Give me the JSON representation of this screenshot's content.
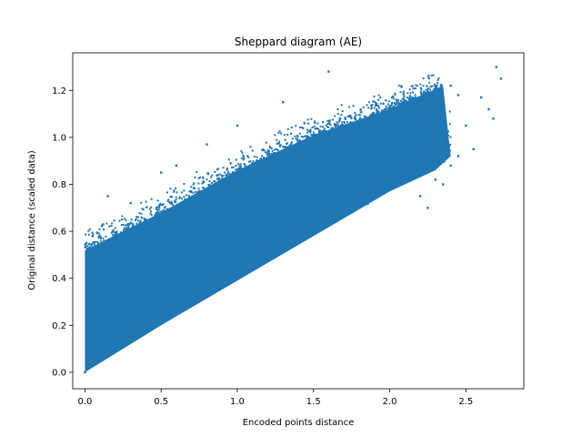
{
  "chart_data": {
    "type": "scatter",
    "title": "Sheppard diagram (AE)",
    "xlabel": "Encoded points distance",
    "ylabel": "Original distance (scaled data)",
    "xlim": [
      -0.08,
      2.88
    ],
    "ylim": [
      -0.07,
      1.36
    ],
    "xticks": [
      0.0,
      0.5,
      1.0,
      1.5,
      2.0,
      2.5
    ],
    "xtick_labels": [
      "0.0",
      "0.5",
      "1.0",
      "1.5",
      "2.0",
      "2.5"
    ],
    "yticks": [
      0.0,
      0.2,
      0.4,
      0.6,
      0.8,
      1.0,
      1.2
    ],
    "ytick_labels": [
      "0.0",
      "0.2",
      "0.4",
      "0.6",
      "0.8",
      "1.0",
      "1.2"
    ],
    "grid": false,
    "legend": "none",
    "series_color": "#1f77b4",
    "dense_region": {
      "lower_edge": [
        [
          0.0,
          0.0
        ],
        [
          0.5,
          0.2
        ],
        [
          1.0,
          0.39
        ],
        [
          1.5,
          0.58
        ],
        [
          2.0,
          0.77
        ],
        [
          2.3,
          0.86
        ],
        [
          2.4,
          0.92
        ]
      ],
      "upper_edge": [
        [
          0.0,
          0.52
        ],
        [
          0.25,
          0.6
        ],
        [
          0.5,
          0.68
        ],
        [
          1.0,
          0.86
        ],
        [
          1.5,
          1.01
        ],
        [
          2.0,
          1.12
        ],
        [
          2.35,
          1.22
        ]
      ]
    },
    "points": [
      [
        0.0,
        0.0
      ],
      [
        0.01,
        0.55
      ],
      [
        0.05,
        0.58
      ],
      [
        0.12,
        0.63
      ],
      [
        0.15,
        0.75
      ],
      [
        0.3,
        0.72
      ],
      [
        0.5,
        0.85
      ],
      [
        0.6,
        0.88
      ],
      [
        0.8,
        0.97
      ],
      [
        1.0,
        1.05
      ],
      [
        1.3,
        1.15
      ],
      [
        1.6,
        1.28
      ],
      [
        2.0,
        1.12
      ],
      [
        2.1,
        0.85
      ],
      [
        2.2,
        0.75
      ],
      [
        2.3,
        1.18
      ],
      [
        2.4,
        1.22
      ],
      [
        2.45,
        1.18
      ],
      [
        2.5,
        1.05
      ],
      [
        2.55,
        0.95
      ],
      [
        2.6,
        1.17
      ],
      [
        2.65,
        1.12
      ],
      [
        2.7,
        1.3
      ],
      [
        2.73,
        1.25
      ],
      [
        2.68,
        1.08
      ],
      [
        2.4,
        0.88
      ],
      [
        2.3,
        0.82
      ],
      [
        2.25,
        0.7
      ],
      [
        2.35,
        0.8
      ],
      [
        2.45,
        0.92
      ]
    ]
  }
}
